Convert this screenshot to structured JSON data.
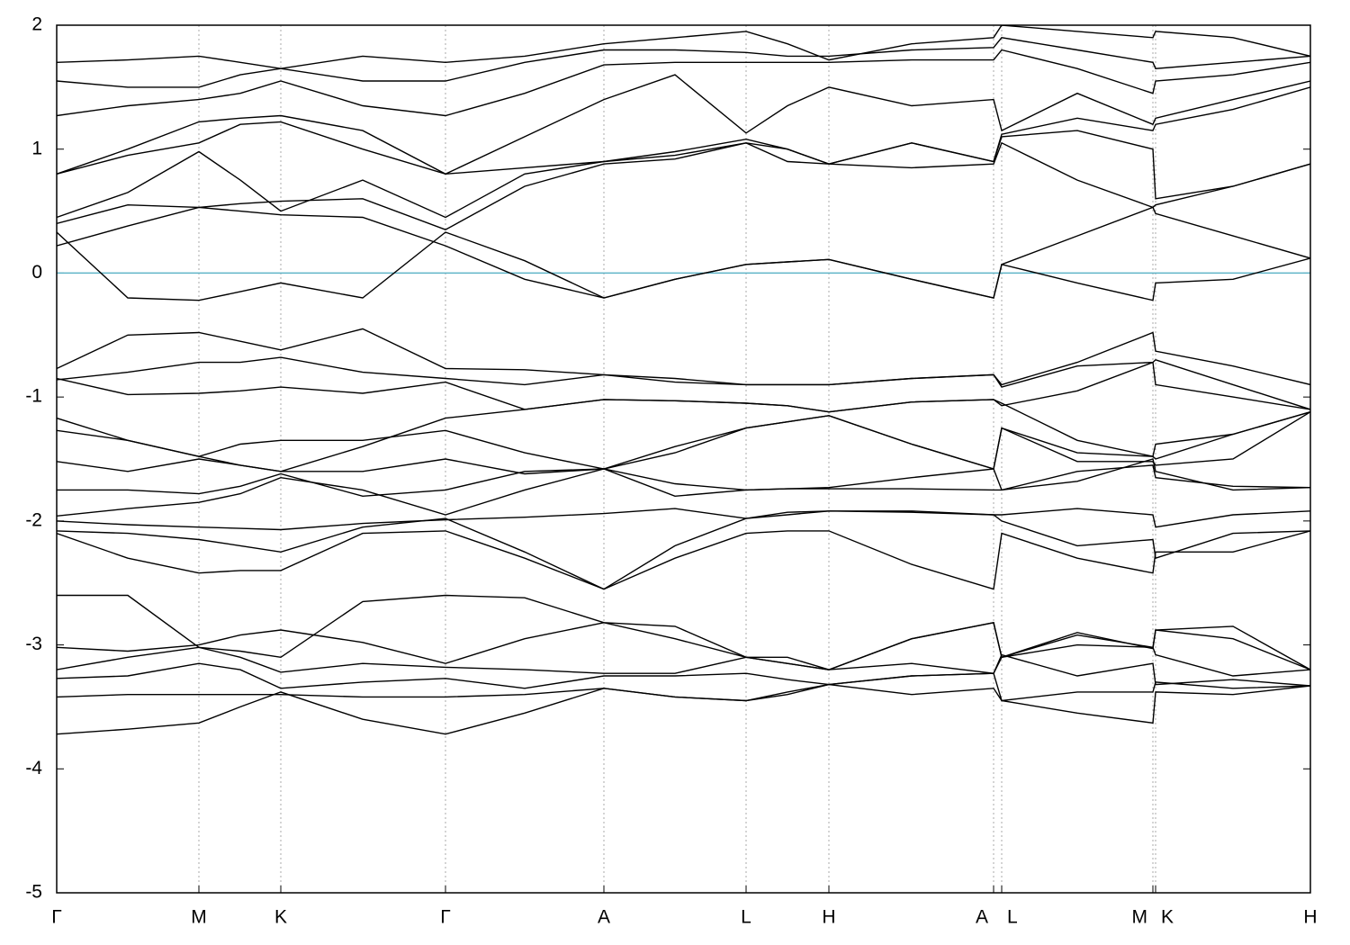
{
  "chart_data": {
    "type": "line",
    "xlim": [
      0,
      1393
    ],
    "xticks": [
      {
        "value": 0,
        "label": "Γ"
      },
      {
        "value": 158,
        "label": "M"
      },
      {
        "value": 249,
        "label": "K"
      },
      {
        "value": 432,
        "label": "Γ"
      },
      {
        "value": 608,
        "label": "A"
      },
      {
        "value": 766,
        "label": "L"
      },
      {
        "value": 858,
        "label": "H"
      },
      {
        "value": 1041,
        "label": "A"
      },
      {
        "value": 1050,
        "label": "L"
      },
      {
        "value": 1218,
        "label": "M"
      },
      {
        "value": 1221,
        "label": "K"
      },
      {
        "value": 1393,
        "label": "H"
      }
    ],
    "ylim": [
      -5,
      2
    ],
    "yticks": [
      -5,
      -4,
      -3,
      -2,
      -1,
      0,
      1,
      2
    ],
    "grid": true,
    "color": "#000000",
    "fermi_level": 0,
    "fermi_color": "#5fb4c8",
    "x": [
      0,
      79,
      158,
      204,
      249,
      340,
      432,
      520,
      608,
      687,
      766,
      812,
      858,
      950,
      1041,
      1050,
      1134,
      1218,
      1221,
      1307,
      1393
    ],
    "bands": [
      [
        -3.72,
        -3.68,
        -3.63,
        -3.5,
        -3.38,
        -3.6,
        -3.72,
        -3.55,
        -3.35,
        -3.42,
        -3.45,
        -3.38,
        -3.32,
        -3.25,
        -3.23,
        -3.45,
        -3.55,
        -3.63,
        -3.38,
        -3.4,
        -3.33
      ],
      [
        -3.42,
        -3.4,
        -3.4,
        -3.4,
        -3.4,
        -3.42,
        -3.42,
        -3.4,
        -3.35,
        -3.42,
        -3.45,
        -3.4,
        -3.32,
        -3.4,
        -3.35,
        -3.45,
        -3.38,
        -3.38,
        -3.3,
        -3.35,
        -3.33
      ],
      [
        -3.27,
        -3.25,
        -3.15,
        -3.2,
        -3.35,
        -3.3,
        -3.27,
        -3.35,
        -3.25,
        -3.25,
        -3.23,
        -3.28,
        -3.32,
        -3.25,
        -3.23,
        -3.08,
        -3.25,
        -3.15,
        -3.32,
        -3.28,
        -3.33
      ],
      [
        -3.2,
        -3.1,
        -3.02,
        -3.1,
        -3.22,
        -3.15,
        -3.18,
        -3.2,
        -3.23,
        -3.23,
        -3.1,
        -3.15,
        -3.2,
        -2.95,
        -2.82,
        -3.1,
        -3.0,
        -3.02,
        -3.08,
        -3.25,
        -3.2
      ],
      [
        -3.02,
        -3.05,
        -3.0,
        -2.92,
        -2.88,
        -2.98,
        -3.15,
        -2.95,
        -2.82,
        -2.95,
        -3.1,
        -3.15,
        -3.2,
        -2.95,
        -2.82,
        -3.1,
        -2.9,
        -3.03,
        -2.88,
        -2.85,
        -3.2
      ],
      [
        -2.6,
        -2.6,
        -3.02,
        -3.05,
        -3.1,
        -2.65,
        -2.6,
        -2.62,
        -2.82,
        -2.85,
        -3.1,
        -3.1,
        -3.2,
        -3.15,
        -3.23,
        -3.1,
        -2.92,
        -3.02,
        -2.88,
        -2.95,
        -3.2
      ],
      [
        -2.1,
        -2.3,
        -2.42,
        -2.4,
        -2.4,
        -2.1,
        -2.08,
        -2.3,
        -2.55,
        -2.3,
        -2.1,
        -2.08,
        -2.08,
        -2.35,
        -2.55,
        -2.1,
        -2.3,
        -2.42,
        -2.25,
        -2.25,
        -2.08
      ],
      [
        -2.08,
        -2.1,
        -2.15,
        -2.2,
        -2.25,
        -2.05,
        -1.98,
        -2.25,
        -2.55,
        -2.2,
        -1.98,
        -1.95,
        -1.92,
        -1.93,
        -1.95,
        -2.0,
        -2.2,
        -2.15,
        -2.3,
        -2.1,
        -2.08
      ],
      [
        -2.0,
        -2.03,
        -2.05,
        -2.06,
        -2.07,
        -2.02,
        -1.99,
        -1.97,
        -1.94,
        -1.9,
        -1.98,
        -1.93,
        -1.92,
        -1.92,
        -1.95,
        -1.95,
        -1.9,
        -1.95,
        -2.05,
        -1.95,
        -1.92
      ],
      [
        -1.96,
        -1.9,
        -1.85,
        -1.78,
        -1.65,
        -1.75,
        -1.95,
        -1.75,
        -1.58,
        -1.7,
        -1.75,
        -1.74,
        -1.74,
        -1.74,
        -1.75,
        -1.75,
        -1.6,
        -1.55,
        -1.65,
        -1.72,
        -1.73
      ],
      [
        -1.75,
        -1.75,
        -1.78,
        -1.72,
        -1.62,
        -1.8,
        -1.75,
        -1.6,
        -1.58,
        -1.8,
        -1.75,
        -1.74,
        -1.73,
        -1.65,
        -1.58,
        -1.75,
        -1.68,
        -1.5,
        -1.6,
        -1.75,
        -1.73
      ],
      [
        -1.52,
        -1.6,
        -1.5,
        -1.55,
        -1.6,
        -1.6,
        -1.5,
        -1.62,
        -1.58,
        -1.45,
        -1.25,
        -1.2,
        -1.15,
        -1.38,
        -1.58,
        -1.25,
        -1.52,
        -1.52,
        -1.55,
        -1.5,
        -1.12
      ],
      [
        -1.27,
        -1.35,
        -1.48,
        -1.38,
        -1.35,
        -1.35,
        -1.27,
        -1.45,
        -1.58,
        -1.4,
        -1.25,
        -1.2,
        -1.15,
        -1.38,
        -1.58,
        -1.25,
        -1.45,
        -1.48,
        -1.38,
        -1.3,
        -1.12
      ],
      [
        -1.17,
        -1.35,
        -1.48,
        -1.55,
        -1.6,
        -1.4,
        -1.17,
        -1.1,
        -1.02,
        -1.03,
        -1.05,
        -1.07,
        -1.12,
        -1.04,
        -1.02,
        -1.05,
        -1.35,
        -1.48,
        -1.5,
        -1.3,
        -1.12
      ],
      [
        -0.85,
        -0.98,
        -0.97,
        -0.95,
        -0.92,
        -0.97,
        -0.88,
        -1.1,
        -1.02,
        -1.03,
        -1.05,
        -1.07,
        -1.12,
        -1.04,
        -1.02,
        -1.07,
        -0.95,
        -0.72,
        -0.9,
        -1.0,
        -1.1
      ],
      [
        -0.86,
        -0.8,
        -0.72,
        -0.72,
        -0.68,
        -0.8,
        -0.85,
        -0.9,
        -0.82,
        -0.88,
        -0.9,
        -0.9,
        -0.9,
        -0.85,
        -0.82,
        -0.92,
        -0.75,
        -0.72,
        -0.7,
        -0.9,
        -1.1
      ],
      [
        -0.77,
        -0.5,
        -0.48,
        -0.55,
        -0.62,
        -0.45,
        -0.77,
        -0.78,
        -0.82,
        -0.85,
        -0.9,
        -0.9,
        -0.9,
        -0.85,
        -0.82,
        -0.9,
        -0.72,
        -0.48,
        -0.63,
        -0.75,
        -0.9
      ],
      [
        0.33,
        -0.2,
        -0.22,
        -0.15,
        -0.08,
        -0.2,
        0.33,
        0.1,
        -0.2,
        -0.05,
        0.07,
        0.09,
        0.11,
        -0.05,
        -0.2,
        0.07,
        -0.08,
        -0.22,
        -0.08,
        -0.05,
        0.12
      ],
      [
        0.22,
        0.38,
        0.53,
        0.5,
        0.47,
        0.45,
        0.22,
        -0.05,
        -0.2,
        -0.05,
        0.07,
        0.09,
        0.11,
        -0.05,
        -0.2,
        0.07,
        0.3,
        0.53,
        0.48,
        0.3,
        0.12
      ],
      [
        0.4,
        0.55,
        0.53,
        0.56,
        0.58,
        0.6,
        0.35,
        0.7,
        0.88,
        0.92,
        1.05,
        0.9,
        0.88,
        0.85,
        0.88,
        1.05,
        0.75,
        0.53,
        0.55,
        0.7,
        0.88
      ],
      [
        0.45,
        0.65,
        0.98,
        0.75,
        0.5,
        0.75,
        0.45,
        0.8,
        0.9,
        0.95,
        1.05,
        1.0,
        0.88,
        1.05,
        0.9,
        1.1,
        1.15,
        1.0,
        0.6,
        0.7,
        0.88
      ],
      [
        0.8,
        0.95,
        1.05,
        1.2,
        1.22,
        1.0,
        0.8,
        0.85,
        0.9,
        0.98,
        1.08,
        1.0,
        0.88,
        1.05,
        0.9,
        1.12,
        1.25,
        1.15,
        1.2,
        1.32,
        1.5
      ],
      [
        0.8,
        1.0,
        1.22,
        1.25,
        1.27,
        1.15,
        0.8,
        1.1,
        1.4,
        1.6,
        1.13,
        1.35,
        1.5,
        1.35,
        1.4,
        1.15,
        1.45,
        1.2,
        1.25,
        1.4,
        1.55
      ],
      [
        1.27,
        1.35,
        1.4,
        1.45,
        1.55,
        1.35,
        1.27,
        1.45,
        1.68,
        1.7,
        1.7,
        1.7,
        1.7,
        1.72,
        1.72,
        1.8,
        1.65,
        1.45,
        1.55,
        1.6,
        1.7
      ],
      [
        1.55,
        1.5,
        1.5,
        1.6,
        1.65,
        1.55,
        1.55,
        1.7,
        1.8,
        1.8,
        1.78,
        1.75,
        1.75,
        1.8,
        1.82,
        1.9,
        1.8,
        1.7,
        1.65,
        1.7,
        1.75
      ],
      [
        1.7,
        1.72,
        1.75,
        1.7,
        1.65,
        1.75,
        1.7,
        1.75,
        1.85,
        1.9,
        1.95,
        1.85,
        1.72,
        1.85,
        1.9,
        2.0,
        1.95,
        1.9,
        1.95,
        1.9,
        1.75
      ]
    ]
  }
}
